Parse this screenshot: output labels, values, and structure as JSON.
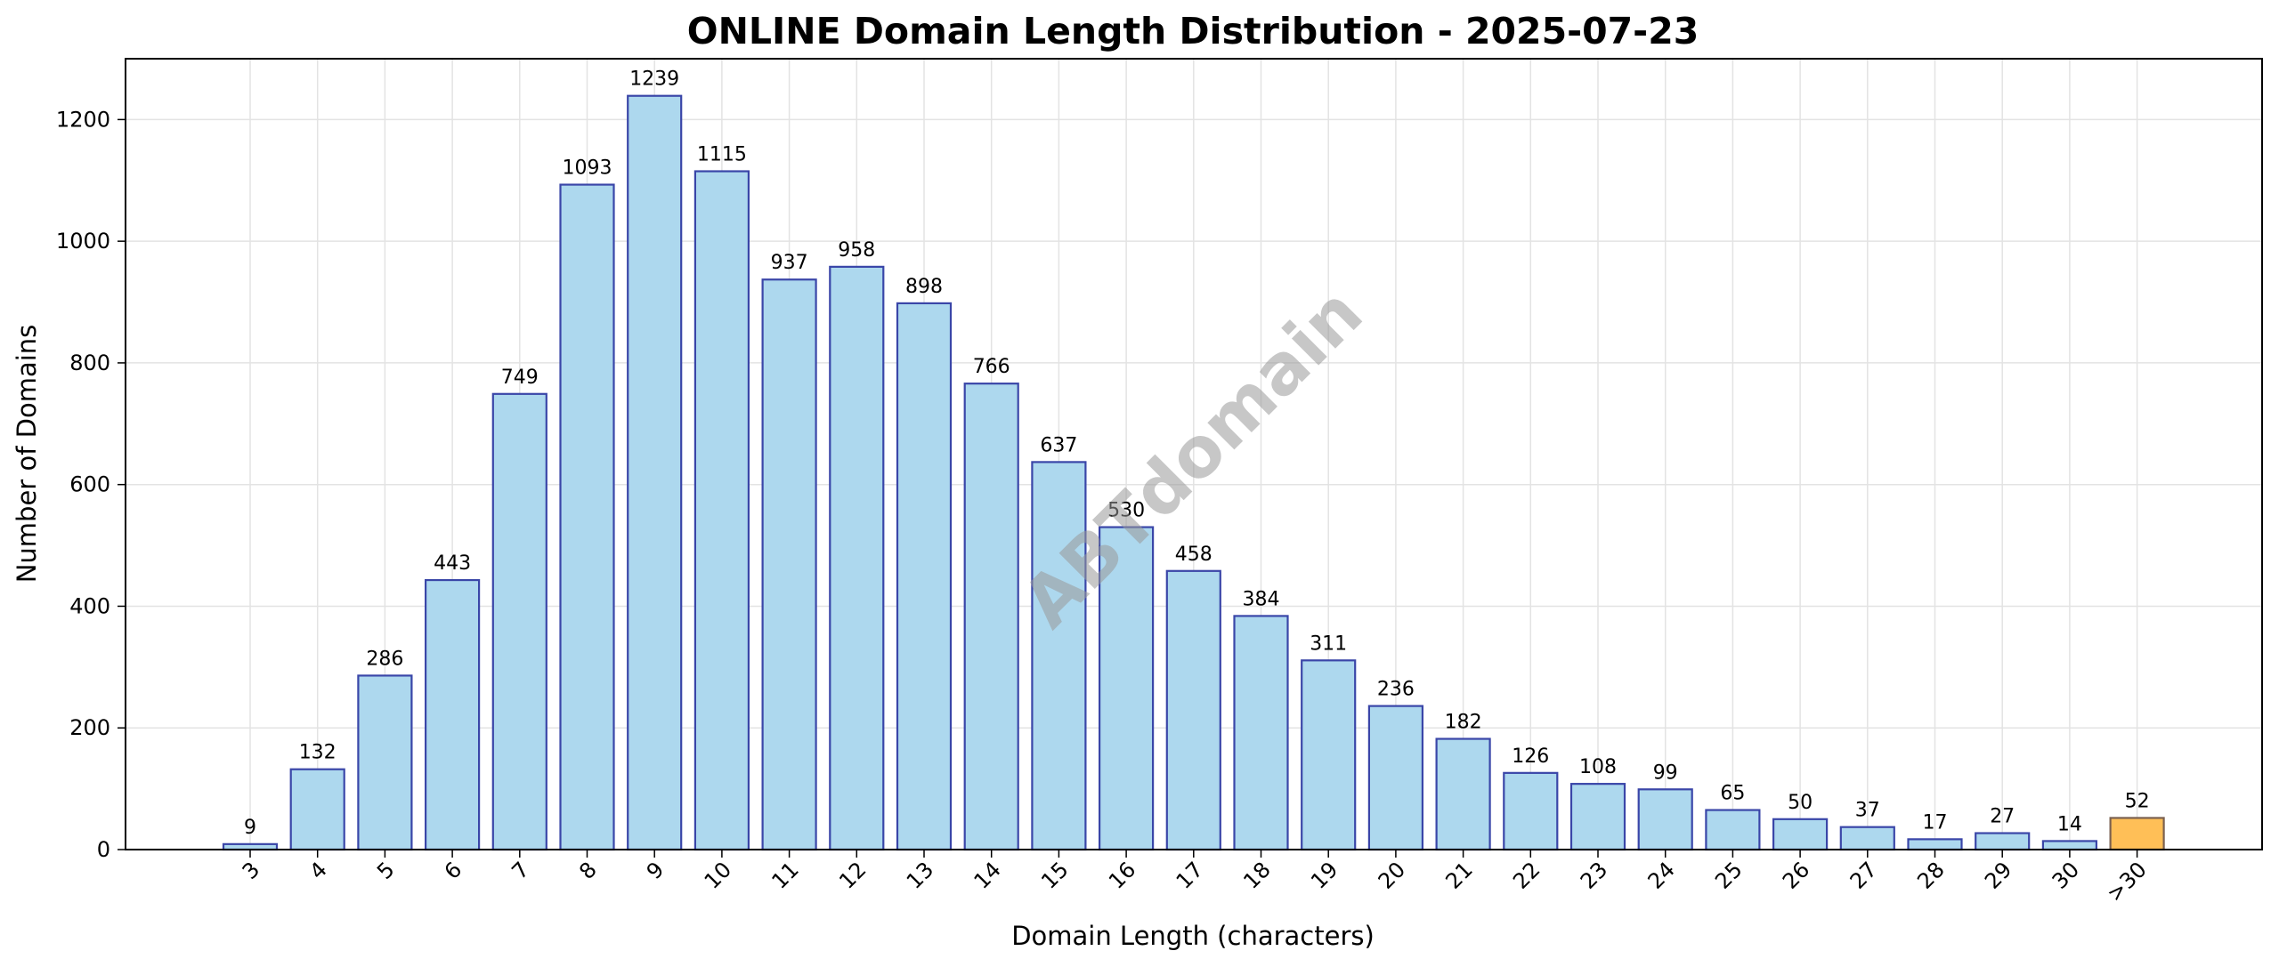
{
  "watermark": "ABTdomain",
  "colors": {
    "bar_fill": "#add8ee",
    "bar_edge": "#3a46a8",
    "highlight_fill": "#ffbf57",
    "highlight_edge": "#7a6050",
    "grid": "#e3e3e3"
  },
  "chart_data": {
    "type": "bar",
    "title": "ONLINE Domain Length Distribution - 2025-07-23",
    "xlabel": "Domain Length (characters)",
    "ylabel": "Number of Domains",
    "categories": [
      "3",
      "4",
      "5",
      "6",
      "7",
      "8",
      "9",
      "10",
      "11",
      "12",
      "13",
      "14",
      "15",
      "16",
      "17",
      "18",
      "19",
      "20",
      "21",
      "22",
      "23",
      "24",
      "25",
      "26",
      "27",
      "28",
      "29",
      "30",
      ">30"
    ],
    "values": [
      9,
      132,
      286,
      443,
      749,
      1093,
      1239,
      1115,
      937,
      958,
      898,
      766,
      637,
      530,
      458,
      384,
      311,
      236,
      182,
      126,
      108,
      99,
      65,
      50,
      37,
      17,
      27,
      14,
      52
    ],
    "highlight_category": ">30",
    "ylim": [
      0,
      1300
    ],
    "yticks": [
      0,
      200,
      400,
      600,
      800,
      1000,
      1200
    ],
    "grid": true,
    "legend": false
  }
}
